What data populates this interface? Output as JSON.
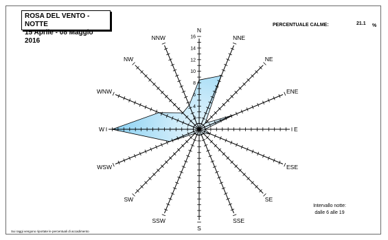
{
  "title_line1": "ROSA DEL VENTO - NOTTE",
  "title_line2": "15 Aprile - 08 Maggio 2016",
  "calme": {
    "label": "PERCENTUALE CALME:",
    "value": "21.1",
    "unit": "%"
  },
  "night_note": {
    "line1": "Intervallo notte:",
    "line2": "dalle 6 alle 19"
  },
  "footnote": "Sui raggi vengono riportate le percentuali di accadimento",
  "colors": {
    "fill_inner": "#e8f6fd",
    "fill_outer": "#8fd3f3",
    "stroke": "#000000"
  },
  "chart_data": {
    "type": "radar",
    "categories": [
      "N",
      "NNE",
      "NE",
      "ENE",
      "E",
      "ESE",
      "SE",
      "SSE",
      "S",
      "SSW",
      "SW",
      "WSW",
      "W",
      "WNW",
      "NW",
      "NNW"
    ],
    "values": [
      8.5,
      10,
      1.5,
      6.5,
      1,
      2,
      1,
      1,
      1,
      1,
      1,
      5.5,
      15,
      7.5,
      4,
      4.5
    ],
    "r_ticks": [
      2,
      4,
      6,
      8,
      10,
      12,
      14,
      16
    ],
    "r_tick_labels": [
      "2",
      "4",
      "6",
      "8",
      "10",
      "12",
      "14",
      "16"
    ],
    "rlim": [
      0,
      16
    ]
  }
}
